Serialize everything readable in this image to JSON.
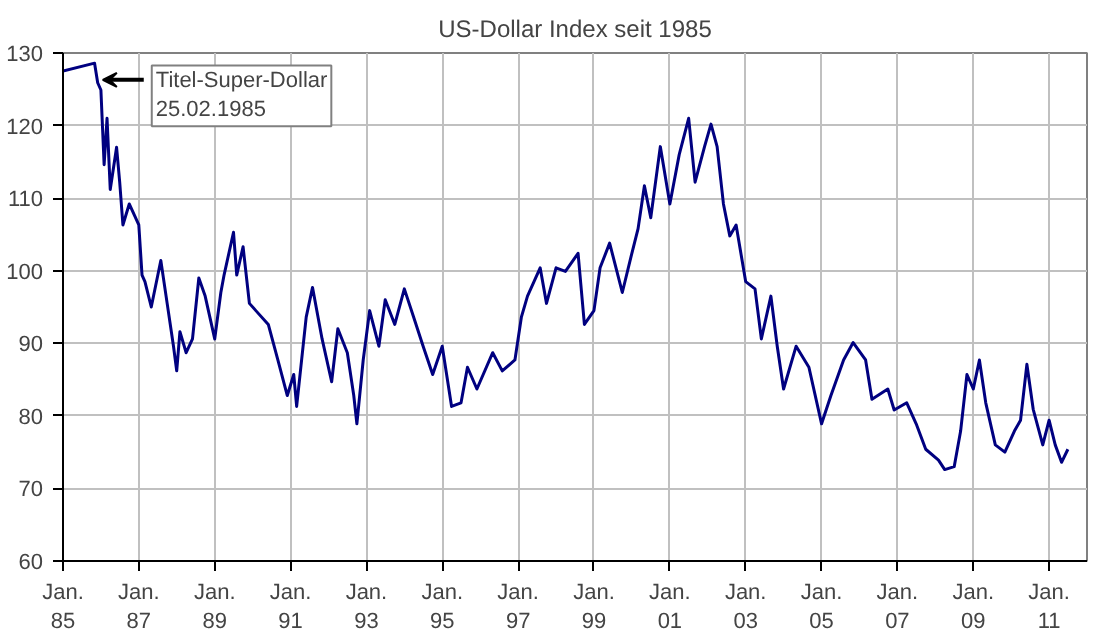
{
  "chart_data": {
    "type": "line",
    "title": "US-Dollar Index seit 1985",
    "x": [
      "1985-01",
      "1985-11",
      "1985-12",
      "1986-01",
      "1986-02",
      "1986-03",
      "1986-04",
      "1986-06",
      "1986-07",
      "1986-08",
      "1986-10",
      "1987-01",
      "1987-02",
      "1987-03",
      "1987-05",
      "1987-08",
      "1987-10",
      "1987-12",
      "1988-01",
      "1988-02",
      "1988-04",
      "1988-06",
      "1988-08",
      "1988-10",
      "1989-01",
      "1989-03",
      "1989-04",
      "1989-07",
      "1989-08",
      "1989-10",
      "1989-12",
      "1990-02",
      "1990-06",
      "1990-09",
      "1990-12",
      "1991-02",
      "1991-03",
      "1991-06",
      "1991-08",
      "1991-11",
      "1992-02",
      "1992-04",
      "1992-07",
      "1992-09",
      "1992-10",
      "1992-12",
      "1993-02",
      "1993-05",
      "1993-07",
      "1993-10",
      "1994-01",
      "1994-04",
      "1994-07",
      "1994-10",
      "1995-01",
      "1995-04",
      "1995-07",
      "1995-09",
      "1995-12",
      "1996-05",
      "1996-08",
      "1996-12",
      "1997-02",
      "1997-04",
      "1997-08",
      "1997-10",
      "1998-01",
      "1998-04",
      "1998-08",
      "1998-10",
      "1999-01",
      "1999-03",
      "1999-06",
      "1999-10",
      "2000-01",
      "2000-03",
      "2000-05",
      "2000-07",
      "2000-10",
      "2001-01",
      "2001-04",
      "2001-07",
      "2001-09",
      "2001-12",
      "2002-02",
      "2002-04",
      "2002-06",
      "2002-08",
      "2002-10",
      "2003-01",
      "2003-04",
      "2003-06",
      "2003-09",
      "2003-11",
      "2004-01",
      "2004-05",
      "2004-09",
      "2005-01",
      "2005-04",
      "2005-08",
      "2005-11",
      "2006-03",
      "2006-05",
      "2006-10",
      "2006-12",
      "2007-04",
      "2007-07",
      "2007-10",
      "2008-02",
      "2008-04",
      "2008-07",
      "2008-09",
      "2008-11",
      "2009-01",
      "2009-03",
      "2009-05",
      "2009-08",
      "2009-11",
      "2010-02",
      "2010-04",
      "2010-06",
      "2010-08",
      "2010-11",
      "2011-01",
      "2011-03",
      "2011-05",
      "2011-07"
    ],
    "series": [
      {
        "color": "#000080",
        "values": [
          127.5,
          128.6,
          125.9,
          124.9,
          114.6,
          121,
          111.2,
          117,
          112.2,
          106.3,
          109.2,
          106.3,
          99.4,
          98.5,
          95,
          101.4,
          95.5,
          89.6,
          86.2,
          91.6,
          88.7,
          90.6,
          99,
          96.5,
          90.6,
          97,
          99.4,
          105.3,
          99.4,
          103.3,
          95.5,
          94.5,
          92.6,
          87.7,
          82.8,
          85.7,
          81.3,
          93.6,
          97.7,
          90.6,
          84.7,
          92,
          88.7,
          82.8,
          78.9,
          87.7,
          94.5,
          89.6,
          96,
          92.6,
          97.5,
          93.6,
          89.6,
          85.7,
          89.6,
          81.3,
          81.8,
          86.7,
          83.7,
          88.7,
          86.2,
          87.7,
          93.6,
          96.5,
          100.4,
          95.5,
          100.4,
          99.9,
          102.4,
          92.6,
          94.5,
          100.4,
          103.8,
          97,
          102.4,
          105.8,
          111.7,
          107.3,
          117.1,
          109.2,
          116,
          121,
          112.2,
          117.1,
          120.2,
          117.1,
          109.2,
          104.8,
          106.3,
          98.5,
          97.5,
          90.6,
          96.5,
          89.6,
          83.7,
          89.6,
          86.7,
          78.9,
          82.8,
          87.7,
          90.1,
          87.7,
          82.3,
          83.7,
          80.8,
          81.8,
          78.9,
          75.4,
          73.9,
          72.6,
          73,
          77.9,
          85.7,
          83.7,
          87.7,
          81.8,
          76,
          75,
          77.9,
          79.4,
          87.1,
          80.9,
          76,
          79.4,
          76,
          73.6,
          75.4
        ]
      }
    ],
    "xlim": [
      "1985-01-01",
      "2012-01-01"
    ],
    "ylim": [
      60,
      130
    ],
    "xticks": [
      {
        "value": "1985-01-01",
        "label": "Jan.\n85"
      },
      {
        "value": "1987-01-01",
        "label": "Jan.\n87"
      },
      {
        "value": "1989-01-01",
        "label": "Jan.\n89"
      },
      {
        "value": "1991-01-01",
        "label": "Jan.\n91"
      },
      {
        "value": "1993-01-01",
        "label": "Jan.\n93"
      },
      {
        "value": "1995-01-01",
        "label": "Jan.\n95"
      },
      {
        "value": "1997-01-01",
        "label": "Jan.\n97"
      },
      {
        "value": "1999-01-01",
        "label": "Jan.\n99"
      },
      {
        "value": "2001-01-01",
        "label": "Jan.\n01"
      },
      {
        "value": "2003-01-01",
        "label": "Jan.\n03"
      },
      {
        "value": "2005-01-01",
        "label": "Jan.\n05"
      },
      {
        "value": "2007-01-01",
        "label": "Jan.\n07"
      },
      {
        "value": "2009-01-01",
        "label": "Jan.\n09"
      },
      {
        "value": "2011-01-01",
        "label": "Jan.\n11"
      }
    ],
    "yticks": [
      60,
      70,
      80,
      90,
      100,
      110,
      120,
      130
    ],
    "grid": true,
    "annotations": [
      {
        "text": "Titel-Super-Dollar\n25.02.1985",
        "x": "1985-12",
        "y": 126.3
      }
    ]
  }
}
